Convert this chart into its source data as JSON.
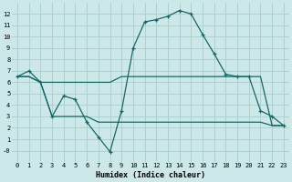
{
  "x": [
    0,
    1,
    2,
    3,
    4,
    5,
    6,
    7,
    8,
    9,
    10,
    11,
    12,
    13,
    14,
    15,
    16,
    17,
    18,
    19,
    20,
    21,
    22,
    23
  ],
  "line_curve": [
    6.5,
    7.0,
    6.0,
    3.0,
    4.8,
    4.5,
    2.5,
    1.2,
    -0.1,
    3.5,
    9.0,
    11.3,
    11.5,
    11.8,
    12.3,
    12.0,
    10.2,
    8.5,
    6.7,
    6.5,
    6.5,
    3.5,
    3.0,
    2.2
  ],
  "line_upper": [
    6.5,
    6.5,
    6.0,
    6.0,
    6.0,
    6.0,
    6.0,
    6.0,
    6.0,
    6.5,
    6.5,
    6.5,
    6.5,
    6.5,
    6.5,
    6.5,
    6.5,
    6.5,
    6.5,
    6.5,
    6.5,
    6.5,
    2.2,
    2.2
  ],
  "line_lower": [
    6.5,
    6.5,
    6.0,
    3.0,
    3.0,
    3.0,
    3.0,
    2.5,
    2.5,
    2.5,
    2.5,
    2.5,
    2.5,
    2.5,
    2.5,
    2.5,
    2.5,
    2.5,
    2.5,
    2.5,
    2.5,
    2.5,
    2.2,
    2.2
  ],
  "bg_color": "#cce8e8",
  "grid_color": "#aacccc",
  "line_color": "#1a6666",
  "xlabel": "Humidex (Indice chaleur)",
  "ylim": [
    -1,
    13
  ],
  "xlim": [
    -0.5,
    23.5
  ],
  "yticks": [
    0,
    1,
    2,
    3,
    4,
    5,
    6,
    7,
    8,
    9,
    10,
    11,
    12
  ],
  "ytick_labels": [
    "-0",
    "1",
    "2",
    "3",
    "4",
    "5",
    "6",
    "7",
    "8",
    "9",
    "10",
    "11",
    "12"
  ],
  "xticks": [
    0,
    1,
    2,
    3,
    4,
    5,
    6,
    7,
    8,
    9,
    10,
    11,
    12,
    13,
    14,
    15,
    16,
    17,
    18,
    19,
    20,
    21,
    22,
    23
  ]
}
